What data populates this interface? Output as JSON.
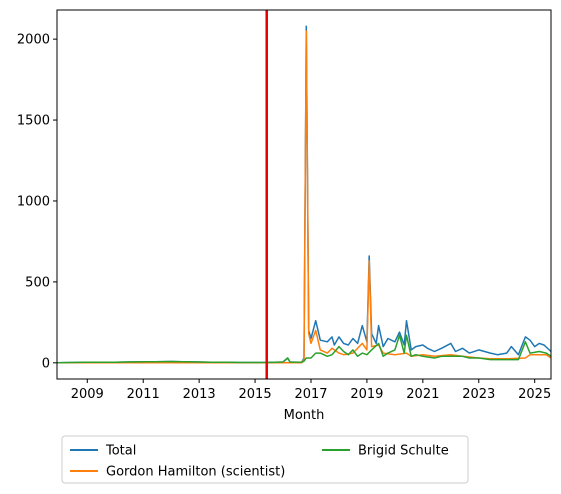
{
  "chart_data": {
    "type": "line",
    "xlabel": "Month",
    "ylabel": "",
    "xlim": [
      "2007-12",
      "2025-08"
    ],
    "ylim": [
      -100,
      2180
    ],
    "x_ticks": [
      "2009",
      "2011",
      "2013",
      "2015",
      "2017",
      "2019",
      "2021",
      "2023",
      "2025"
    ],
    "y_ticks": [
      0,
      500,
      1000,
      1500,
      2000
    ],
    "grid": false,
    "legend_position": "below",
    "vline": {
      "x": "2015-06",
      "color": "#e60000"
    },
    "series": [
      {
        "name": "Total",
        "color": "#1f77b4",
        "points": [
          [
            "2007-12",
            0
          ],
          [
            "2008-06",
            2
          ],
          [
            "2009-01",
            3
          ],
          [
            "2009-06",
            4
          ],
          [
            "2010-01",
            3
          ],
          [
            "2010-06",
            5
          ],
          [
            "2011-01",
            6
          ],
          [
            "2011-06",
            7
          ],
          [
            "2012-01",
            8
          ],
          [
            "2012-06",
            6
          ],
          [
            "2013-01",
            5
          ],
          [
            "2013-06",
            4
          ],
          [
            "2014-01",
            3
          ],
          [
            "2014-06",
            2
          ],
          [
            "2015-01",
            2
          ],
          [
            "2015-06",
            2
          ],
          [
            "2015-08",
            3
          ],
          [
            "2015-10",
            4
          ],
          [
            "2016-01",
            5
          ],
          [
            "2016-03",
            30
          ],
          [
            "2016-04",
            5
          ],
          [
            "2016-06",
            4
          ],
          [
            "2016-09",
            4
          ],
          [
            "2016-10",
            30
          ],
          [
            "2016-11",
            2080
          ],
          [
            "2016-12",
            200
          ],
          [
            "2017-01",
            150
          ],
          [
            "2017-03",
            260
          ],
          [
            "2017-05",
            140
          ],
          [
            "2017-08",
            130
          ],
          [
            "2017-10",
            160
          ],
          [
            "2017-11",
            110
          ],
          [
            "2018-01",
            160
          ],
          [
            "2018-03",
            120
          ],
          [
            "2018-05",
            110
          ],
          [
            "2018-07",
            150
          ],
          [
            "2018-09",
            120
          ],
          [
            "2018-11",
            230
          ],
          [
            "2019-01",
            130
          ],
          [
            "2019-02",
            660
          ],
          [
            "2019-03",
            180
          ],
          [
            "2019-05",
            120
          ],
          [
            "2019-06",
            230
          ],
          [
            "2019-08",
            100
          ],
          [
            "2019-10",
            150
          ],
          [
            "2020-01",
            130
          ],
          [
            "2020-03",
            190
          ],
          [
            "2020-05",
            110
          ],
          [
            "2020-06",
            260
          ],
          [
            "2020-08",
            80
          ],
          [
            "2020-10",
            100
          ],
          [
            "2021-01",
            110
          ],
          [
            "2021-03",
            90
          ],
          [
            "2021-06",
            70
          ],
          [
            "2021-09",
            90
          ],
          [
            "2022-01",
            120
          ],
          [
            "2022-03",
            70
          ],
          [
            "2022-06",
            90
          ],
          [
            "2022-09",
            60
          ],
          [
            "2023-01",
            80
          ],
          [
            "2023-06",
            60
          ],
          [
            "2023-09",
            50
          ],
          [
            "2024-01",
            60
          ],
          [
            "2024-03",
            100
          ],
          [
            "2024-06",
            50
          ],
          [
            "2024-09",
            160
          ],
          [
            "2024-11",
            140
          ],
          [
            "2025-01",
            100
          ],
          [
            "2025-03",
            120
          ],
          [
            "2025-05",
            110
          ],
          [
            "2025-08",
            70
          ]
        ]
      },
      {
        "name": "Gordon Hamilton (scientist)",
        "color": "#ff7f0e",
        "points": [
          [
            "2007-12",
            0
          ],
          [
            "2009-01",
            0
          ],
          [
            "2011-01",
            1
          ],
          [
            "2013-01",
            1
          ],
          [
            "2015-01",
            1
          ],
          [
            "2016-09",
            0
          ],
          [
            "2016-10",
            20
          ],
          [
            "2016-11",
            2050
          ],
          [
            "2016-12",
            180
          ],
          [
            "2017-01",
            120
          ],
          [
            "2017-03",
            200
          ],
          [
            "2017-05",
            80
          ],
          [
            "2017-08",
            60
          ],
          [
            "2017-10",
            90
          ],
          [
            "2018-01",
            60
          ],
          [
            "2018-03",
            50
          ],
          [
            "2018-07",
            60
          ],
          [
            "2018-11",
            120
          ],
          [
            "2019-01",
            80
          ],
          [
            "2019-02",
            630
          ],
          [
            "2019-03",
            100
          ],
          [
            "2019-06",
            110
          ],
          [
            "2019-08",
            60
          ],
          [
            "2020-01",
            50
          ],
          [
            "2020-06",
            60
          ],
          [
            "2020-08",
            40
          ],
          [
            "2021-01",
            50
          ],
          [
            "2021-06",
            40
          ],
          [
            "2022-01",
            50
          ],
          [
            "2022-06",
            40
          ],
          [
            "2023-01",
            30
          ],
          [
            "2023-06",
            25
          ],
          [
            "2024-01",
            25
          ],
          [
            "2024-09",
            30
          ],
          [
            "2024-11",
            50
          ],
          [
            "2025-03",
            50
          ],
          [
            "2025-06",
            50
          ],
          [
            "2025-08",
            30
          ]
        ]
      },
      {
        "name": "Brigid Schulte",
        "color": "#2ca02c",
        "points": [
          [
            "2007-12",
            0
          ],
          [
            "2008-06",
            2
          ],
          [
            "2009-01",
            3
          ],
          [
            "2009-06",
            4
          ],
          [
            "2010-01",
            3
          ],
          [
            "2010-06",
            5
          ],
          [
            "2011-01",
            6
          ],
          [
            "2011-06",
            7
          ],
          [
            "2012-01",
            8
          ],
          [
            "2012-06",
            6
          ],
          [
            "2013-01",
            5
          ],
          [
            "2013-06",
            4
          ],
          [
            "2014-01",
            3
          ],
          [
            "2014-06",
            2
          ],
          [
            "2015-01",
            2
          ],
          [
            "2015-06",
            2
          ],
          [
            "2015-10",
            4
          ],
          [
            "2016-01",
            5
          ],
          [
            "2016-03",
            30
          ],
          [
            "2016-04",
            5
          ],
          [
            "2016-09",
            4
          ],
          [
            "2016-10",
            10
          ],
          [
            "2016-11",
            30
          ],
          [
            "2017-01",
            30
          ],
          [
            "2017-03",
            60
          ],
          [
            "2017-05",
            60
          ],
          [
            "2017-08",
            40
          ],
          [
            "2017-10",
            50
          ],
          [
            "2018-01",
            100
          ],
          [
            "2018-03",
            70
          ],
          [
            "2018-05",
            50
          ],
          [
            "2018-07",
            80
          ],
          [
            "2018-09",
            40
          ],
          [
            "2018-11",
            60
          ],
          [
            "2019-01",
            50
          ],
          [
            "2019-03",
            80
          ],
          [
            "2019-06",
            120
          ],
          [
            "2019-08",
            40
          ],
          [
            "2019-10",
            60
          ],
          [
            "2020-01",
            80
          ],
          [
            "2020-03",
            170
          ],
          [
            "2020-05",
            60
          ],
          [
            "2020-06",
            170
          ],
          [
            "2020-08",
            40
          ],
          [
            "2020-10",
            50
          ],
          [
            "2021-01",
            40
          ],
          [
            "2021-06",
            30
          ],
          [
            "2021-09",
            40
          ],
          [
            "2022-01",
            40
          ],
          [
            "2022-06",
            40
          ],
          [
            "2022-09",
            30
          ],
          [
            "2023-01",
            30
          ],
          [
            "2023-06",
            20
          ],
          [
            "2024-01",
            20
          ],
          [
            "2024-06",
            20
          ],
          [
            "2024-09",
            130
          ],
          [
            "2024-11",
            60
          ],
          [
            "2025-03",
            70
          ],
          [
            "2025-06",
            60
          ],
          [
            "2025-08",
            40
          ]
        ]
      }
    ]
  }
}
